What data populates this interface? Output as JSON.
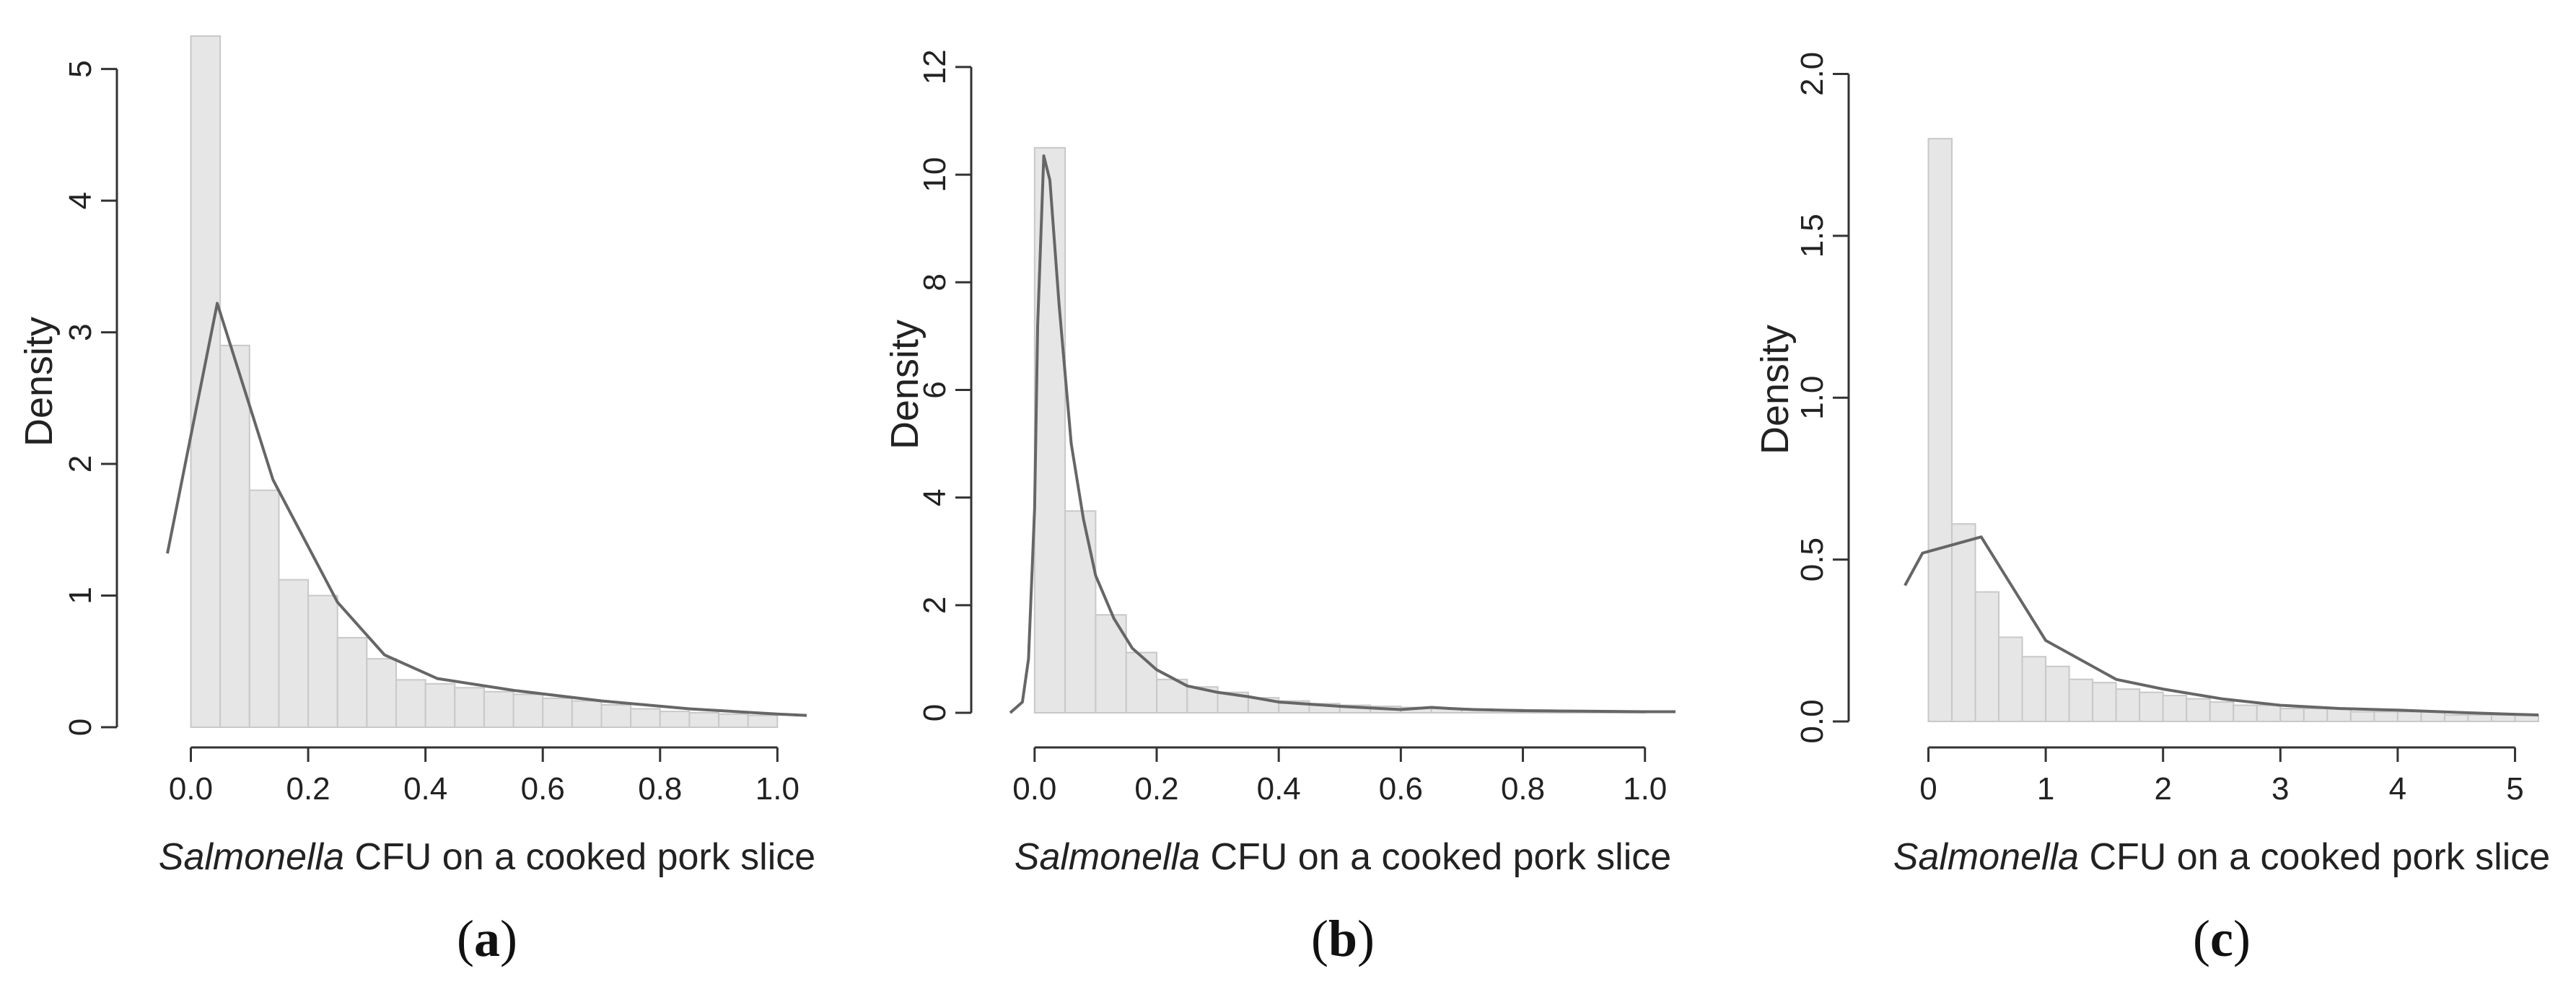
{
  "chart_data": [
    {
      "type": "bar",
      "panel_label": "a",
      "xlabel_italic": "Salmonella",
      "xlabel_rest": " CFU on a cooked pork slice",
      "ylabel": "Density",
      "xlim": [
        -0.04,
        1.05
      ],
      "ylim": [
        0,
        5.25
      ],
      "xticks": [
        0.0,
        0.2,
        0.4,
        0.6,
        0.8,
        1.0
      ],
      "xtick_labels": [
        "0.0",
        "0.2",
        "0.4",
        "0.6",
        "0.8",
        "1.0"
      ],
      "yticks": [
        0,
        1,
        2,
        3,
        4,
        5
      ],
      "ytick_labels": [
        "0",
        "1",
        "2",
        "3",
        "4",
        "5"
      ],
      "bins": {
        "start": 0.0,
        "width": 0.05,
        "values": [
          5.25,
          2.9,
          1.8,
          1.12,
          1.0,
          0.68,
          0.52,
          0.36,
          0.33,
          0.3,
          0.27,
          0.25,
          0.22,
          0.2,
          0.17,
          0.14,
          0.12,
          0.11,
          0.1,
          0.09
        ]
      },
      "density_line": {
        "x": [
          -0.04,
          0.045,
          0.14,
          0.25,
          0.33,
          0.42,
          0.55,
          0.7,
          0.85,
          1.0,
          1.05
        ],
        "y": [
          1.32,
          3.22,
          1.88,
          0.95,
          0.55,
          0.37,
          0.28,
          0.2,
          0.14,
          0.1,
          0.09
        ]
      }
    },
    {
      "type": "bar",
      "panel_label": "b",
      "xlabel_italic": "Salmonella",
      "xlabel_rest": " CFU on a cooked pork slice",
      "ylabel": "Density",
      "xlim": [
        -0.04,
        1.05
      ],
      "ylim": [
        0,
        12.2
      ],
      "xticks": [
        0.0,
        0.2,
        0.4,
        0.6,
        0.8,
        1.0
      ],
      "xtick_labels": [
        "0.0",
        "0.2",
        "0.4",
        "0.6",
        "0.8",
        "1.0"
      ],
      "yticks": [
        0,
        2,
        4,
        6,
        8,
        10,
        12
      ],
      "ytick_labels": [
        "0",
        "2",
        "4",
        "6",
        "8",
        "10",
        "12"
      ],
      "bins": {
        "start": 0.0,
        "width": 0.05,
        "values": [
          10.5,
          3.75,
          1.82,
          1.12,
          0.62,
          0.48,
          0.38,
          0.28,
          0.22,
          0.17,
          0.14,
          0.12,
          0.1,
          0.08,
          0.07,
          0.06,
          0.05,
          0.04,
          0.04,
          0.03
        ]
      },
      "density_line": {
        "x": [
          -0.04,
          -0.02,
          -0.01,
          0.0,
          0.005,
          0.015,
          0.025,
          0.04,
          0.06,
          0.08,
          0.1,
          0.13,
          0.16,
          0.2,
          0.25,
          0.3,
          0.35,
          0.4,
          0.5,
          0.6,
          0.65,
          0.68,
          0.72,
          0.8,
          0.9,
          1.0,
          1.05
        ],
        "y": [
          0.0,
          0.2,
          1.0,
          3.8,
          7.2,
          10.35,
          9.9,
          7.6,
          5.0,
          3.6,
          2.55,
          1.75,
          1.2,
          0.8,
          0.5,
          0.38,
          0.3,
          0.2,
          0.12,
          0.06,
          0.1,
          0.08,
          0.06,
          0.04,
          0.03,
          0.02,
          0.02
        ]
      }
    },
    {
      "type": "bar",
      "panel_label": "c",
      "xlabel_italic": "Salmonella",
      "xlabel_rest": " CFU on a cooked pork slice",
      "ylabel": "Density",
      "xlim": [
        -0.2,
        5.2
      ],
      "ylim": [
        0,
        2.05
      ],
      "xticks": [
        0,
        1,
        2,
        3,
        4,
        5
      ],
      "xtick_labels": [
        "0",
        "1",
        "2",
        "3",
        "4",
        "5"
      ],
      "yticks": [
        0.0,
        0.5,
        1.0,
        1.5,
        2.0
      ],
      "ytick_labels": [
        "0.0",
        "0.5",
        "1.0",
        "1.5",
        "2.0"
      ],
      "bins": {
        "start": 0.0,
        "width": 0.2,
        "values": [
          1.8,
          0.61,
          0.4,
          0.26,
          0.2,
          0.17,
          0.13,
          0.12,
          0.1,
          0.09,
          0.08,
          0.07,
          0.06,
          0.05,
          0.05,
          0.04,
          0.04,
          0.04,
          0.03,
          0.03,
          0.03,
          0.03,
          0.02,
          0.02,
          0.02,
          0.02
        ]
      },
      "density_line": {
        "x": [
          -0.2,
          -0.05,
          0.45,
          1.0,
          1.6,
          2.0,
          2.5,
          3.0,
          3.5,
          4.0,
          4.5,
          5.0,
          5.2
        ],
        "y": [
          0.42,
          0.52,
          0.57,
          0.25,
          0.13,
          0.1,
          0.07,
          0.05,
          0.04,
          0.035,
          0.028,
          0.022,
          0.02
        ]
      }
    }
  ]
}
